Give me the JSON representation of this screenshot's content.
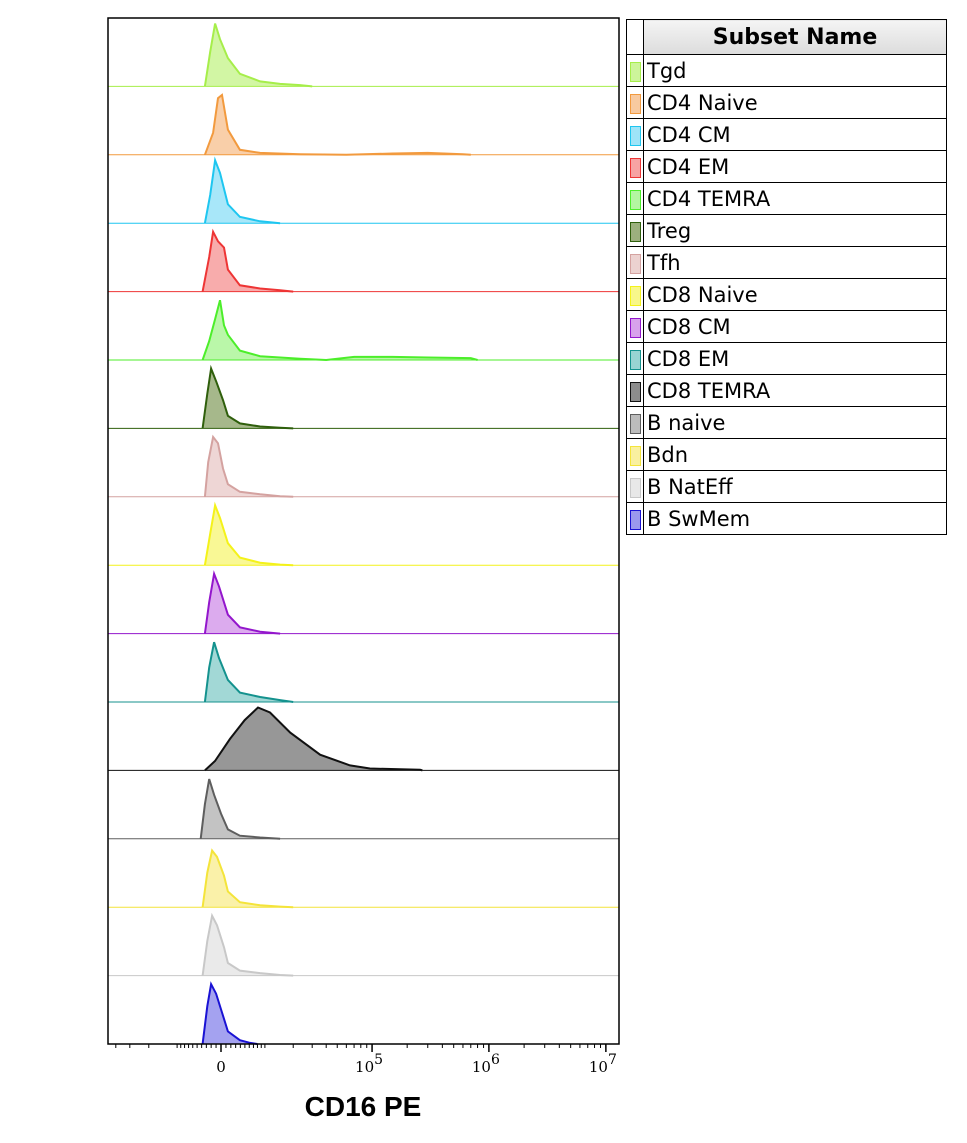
{
  "chart_data": {
    "type": "histogram-overlay",
    "xlabel": "CD16 PE",
    "x_scale": "biexponential",
    "xlim": [
      -46600,
      12900000
    ],
    "x_ticks": [
      {
        "value": 0,
        "label": "0"
      },
      {
        "value": 100000,
        "label": "10",
        "exp": "5"
      },
      {
        "value": 1000000,
        "label": "10",
        "exp": "6"
      },
      {
        "value": 10000000,
        "label": "10",
        "exp": "7"
      }
    ],
    "legend_title": "Subset Name",
    "legend_position": "right",
    "series": [
      {
        "name": "Tgd",
        "color": "#a6ee4a",
        "fill": "#cdf59a",
        "points": [
          [
            -3300,
            0
          ],
          [
            -2200,
            0.55
          ],
          [
            -1200,
            1
          ],
          [
            -200,
            0.75
          ],
          [
            1400,
            0.45
          ],
          [
            3900,
            0.2
          ],
          [
            8700,
            0.08
          ],
          [
            14800,
            0.04
          ],
          [
            23300,
            0.02
          ],
          [
            30000,
            0
          ]
        ]
      },
      {
        "name": "CD4 Naive",
        "color": "#f29a3e",
        "fill": "#f8caa0",
        "points": [
          [
            -3300,
            0
          ],
          [
            -1600,
            0.35
          ],
          [
            -600,
            0.9
          ],
          [
            200,
            0.95
          ],
          [
            1400,
            0.4
          ],
          [
            3900,
            0.08
          ],
          [
            8700,
            0.03
          ],
          [
            23300,
            0.01
          ],
          [
            60000,
            0
          ],
          [
            150000,
            0.02
          ],
          [
            300000,
            0.03
          ],
          [
            600000,
            0.01
          ],
          [
            700000,
            0
          ]
        ]
      },
      {
        "name": "CD4 CM",
        "color": "#1ec6f0",
        "fill": "#9ee4f8",
        "points": [
          [
            -3300,
            0
          ],
          [
            -2200,
            0.45
          ],
          [
            -1200,
            1
          ],
          [
            -200,
            0.8
          ],
          [
            1400,
            0.3
          ],
          [
            3900,
            0.1
          ],
          [
            8700,
            0.03
          ],
          [
            14800,
            0
          ]
        ]
      },
      {
        "name": "CD4 EM",
        "color": "#ee3535",
        "fill": "#f7a3a3",
        "points": [
          [
            -3800,
            0
          ],
          [
            -2400,
            0.55
          ],
          [
            -1600,
            0.95
          ],
          [
            -600,
            0.8
          ],
          [
            600,
            0.7
          ],
          [
            1400,
            0.35
          ],
          [
            3900,
            0.1
          ],
          [
            8700,
            0.05
          ],
          [
            14800,
            0.02
          ],
          [
            20000,
            0
          ]
        ]
      },
      {
        "name": "CD4 TEMRA",
        "color": "#4cee2a",
        "fill": "#b2f6a0",
        "points": [
          [
            -3800,
            0
          ],
          [
            -2400,
            0.3
          ],
          [
            -1200,
            0.65
          ],
          [
            -200,
            0.95
          ],
          [
            600,
            0.55
          ],
          [
            1400,
            0.4
          ],
          [
            3900,
            0.15
          ],
          [
            8700,
            0.06
          ],
          [
            23300,
            0.02
          ],
          [
            40000,
            0
          ],
          [
            70000,
            0.05
          ],
          [
            150000,
            0.05
          ],
          [
            300000,
            0.04
          ],
          [
            700000,
            0.03
          ],
          [
            800000,
            0
          ]
        ]
      },
      {
        "name": "Treg",
        "color": "#2f5f0c",
        "fill": "#9cb07e",
        "points": [
          [
            -3800,
            0
          ],
          [
            -2800,
            0.55
          ],
          [
            -2000,
            0.95
          ],
          [
            -1000,
            0.75
          ],
          [
            400,
            0.45
          ],
          [
            1400,
            0.2
          ],
          [
            3900,
            0.08
          ],
          [
            8700,
            0.03
          ],
          [
            14800,
            0.01
          ],
          [
            20000,
            0
          ]
        ]
      },
      {
        "name": "Tfh",
        "color": "#d4a2a0",
        "fill": "#ecd2d0",
        "points": [
          [
            -3300,
            0
          ],
          [
            -2600,
            0.55
          ],
          [
            -1600,
            0.95
          ],
          [
            -600,
            0.85
          ],
          [
            400,
            0.45
          ],
          [
            1400,
            0.2
          ],
          [
            3900,
            0.08
          ],
          [
            8700,
            0.04
          ],
          [
            14800,
            0.01
          ],
          [
            20000,
            0
          ]
        ]
      },
      {
        "name": "CD8 Naive",
        "color": "#f4f21a",
        "fill": "#f8f78a",
        "points": [
          [
            -3300,
            0
          ],
          [
            -2200,
            0.5
          ],
          [
            -1200,
            0.95
          ],
          [
            -200,
            0.75
          ],
          [
            1400,
            0.35
          ],
          [
            3900,
            0.12
          ],
          [
            8700,
            0.04
          ],
          [
            14800,
            0.01
          ],
          [
            20000,
            0
          ]
        ]
      },
      {
        "name": "CD8 CM",
        "color": "#9316cc",
        "fill": "#d8a2ec",
        "points": [
          [
            -3300,
            0
          ],
          [
            -2400,
            0.5
          ],
          [
            -1400,
            0.95
          ],
          [
            -400,
            0.75
          ],
          [
            1400,
            0.3
          ],
          [
            3900,
            0.1
          ],
          [
            8700,
            0.03
          ],
          [
            14800,
            0
          ]
        ]
      },
      {
        "name": "CD8 EM",
        "color": "#14928e",
        "fill": "#98d4d2",
        "points": [
          [
            -3300,
            0
          ],
          [
            -2400,
            0.55
          ],
          [
            -1400,
            0.95
          ],
          [
            -400,
            0.7
          ],
          [
            1400,
            0.35
          ],
          [
            3900,
            0.15
          ],
          [
            8700,
            0.08
          ],
          [
            14800,
            0.03
          ],
          [
            20000,
            0
          ]
        ]
      },
      {
        "name": "CD8 TEMRA",
        "color": "#111111",
        "fill": "#8c8c8c",
        "points": [
          [
            -3300,
            0
          ],
          [
            -1210,
            0.15
          ],
          [
            1820,
            0.5
          ],
          [
            4950,
            0.8
          ],
          [
            8150,
            1
          ],
          [
            11500,
            0.92
          ],
          [
            18700,
            0.6
          ],
          [
            35300,
            0.25
          ],
          [
            64600,
            0.08
          ],
          [
            95900,
            0.03
          ],
          [
            258000,
            0.01
          ],
          [
            270000,
            0
          ]
        ]
      },
      {
        "name": "B naive",
        "color": "#5e5e5e",
        "fill": "#bcbcbc",
        "points": [
          [
            -4200,
            0
          ],
          [
            -3300,
            0.55
          ],
          [
            -2400,
            0.95
          ],
          [
            -1400,
            0.7
          ],
          [
            0,
            0.4
          ],
          [
            1400,
            0.15
          ],
          [
            3900,
            0.05
          ],
          [
            8700,
            0.02
          ],
          [
            14800,
            0
          ]
        ]
      },
      {
        "name": "Bdn",
        "color": "#f4e43a",
        "fill": "#f9f0a0",
        "points": [
          [
            -3800,
            0
          ],
          [
            -2800,
            0.55
          ],
          [
            -1800,
            0.9
          ],
          [
            -800,
            0.8
          ],
          [
            600,
            0.5
          ],
          [
            1400,
            0.25
          ],
          [
            3900,
            0.08
          ],
          [
            8700,
            0.03
          ],
          [
            14800,
            0.01
          ],
          [
            20000,
            0
          ]
        ]
      },
      {
        "name": "B NatEff",
        "color": "#c8c8c8",
        "fill": "#e8e8e8",
        "points": [
          [
            -3800,
            0
          ],
          [
            -2800,
            0.55
          ],
          [
            -1800,
            0.95
          ],
          [
            -800,
            0.8
          ],
          [
            600,
            0.45
          ],
          [
            1400,
            0.2
          ],
          [
            3900,
            0.08
          ],
          [
            8700,
            0.04
          ],
          [
            14800,
            0.01
          ],
          [
            20000,
            0
          ]
        ]
      },
      {
        "name": "B SwMem",
        "color": "#1a12d4",
        "fill": "#9a98ee",
        "points": [
          [
            -3800,
            0
          ],
          [
            -2800,
            0.6
          ],
          [
            -2000,
            0.95
          ],
          [
            -1000,
            0.8
          ],
          [
            200,
            0.5
          ],
          [
            1400,
            0.2
          ],
          [
            3900,
            0.06
          ],
          [
            6000,
            0.02
          ],
          [
            8000,
            0
          ]
        ]
      }
    ]
  }
}
